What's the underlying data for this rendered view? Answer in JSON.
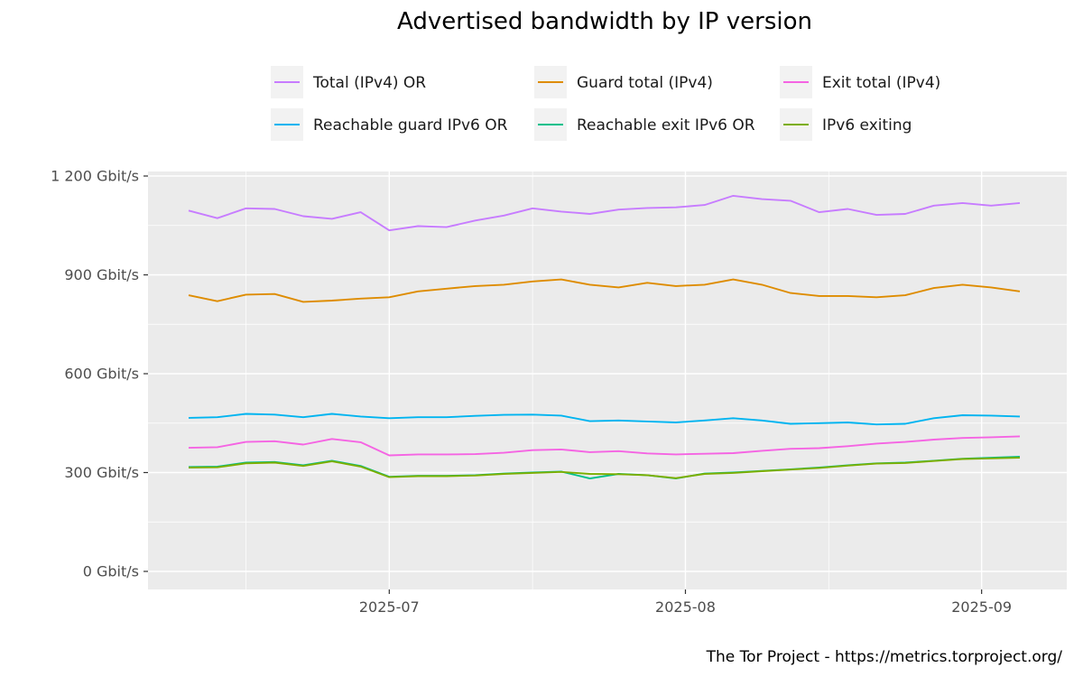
{
  "chart_data": {
    "type": "line",
    "title": "Advertised bandwidth by IP version",
    "xlabel": "",
    "ylabel": "",
    "caption": "The Tor Project - https://metrics.torproject.org/",
    "x_ticks": [
      "2025-07",
      "2025-08",
      "2025-09"
    ],
    "y_ticks": [
      "0 Gbit/s",
      "300 Gbit/s",
      "600 Gbit/s",
      "900 Gbit/s",
      "1 200 Gbit/s"
    ],
    "x_start": "2025-06-10",
    "x_end": "2025-09-05",
    "ylim": [
      0,
      1200
    ],
    "grid": true,
    "legend_position": "top",
    "x": [
      "2025-06-10",
      "2025-06-13",
      "2025-06-16",
      "2025-06-19",
      "2025-06-22",
      "2025-06-25",
      "2025-06-28",
      "2025-07-01",
      "2025-07-04",
      "2025-07-07",
      "2025-07-10",
      "2025-07-13",
      "2025-07-16",
      "2025-07-19",
      "2025-07-22",
      "2025-07-25",
      "2025-07-28",
      "2025-07-31",
      "2025-08-03",
      "2025-08-06",
      "2025-08-09",
      "2025-08-12",
      "2025-08-15",
      "2025-08-18",
      "2025-08-21",
      "2025-08-24",
      "2025-08-27",
      "2025-08-30",
      "2025-09-02",
      "2025-09-05"
    ],
    "series": [
      {
        "name": "Total (IPv4) OR",
        "color": "#c77cff",
        "values": [
          1095,
          1072,
          1102,
          1100,
          1078,
          1070,
          1090,
          1035,
          1048,
          1045,
          1065,
          1080,
          1102,
          1092,
          1085,
          1098,
          1103,
          1105,
          1112,
          1140,
          1130,
          1125,
          1090,
          1100,
          1082,
          1085,
          1110,
          1118,
          1110,
          1118
        ]
      },
      {
        "name": "Guard total (IPv4)",
        "color": "#de8c00",
        "values": [
          838,
          820,
          840,
          842,
          818,
          822,
          828,
          832,
          850,
          858,
          866,
          870,
          880,
          886,
          870,
          862,
          876,
          866,
          870,
          886,
          870,
          845,
          836,
          836,
          832,
          838,
          860,
          870,
          862,
          850
        ]
      },
      {
        "name": "Exit total (IPv4)",
        "color": "#f564e3",
        "values": [
          375,
          377,
          393,
          395,
          385,
          402,
          392,
          352,
          355,
          355,
          356,
          360,
          368,
          370,
          362,
          365,
          358,
          355,
          357,
          359,
          366,
          372,
          374,
          380,
          388,
          393,
          400,
          405,
          407,
          410
        ]
      },
      {
        "name": "Reachable guard IPv6 OR",
        "color": "#00b4f0",
        "values": [
          466,
          468,
          478,
          476,
          468,
          478,
          470,
          465,
          468,
          468,
          472,
          475,
          476,
          473,
          456,
          458,
          455,
          452,
          458,
          465,
          458,
          448,
          450,
          452,
          446,
          448,
          465,
          474,
          473,
          470
        ]
      },
      {
        "name": "Reachable exit IPv6 OR",
        "color": "#00c08b",
        "values": [
          317,
          318,
          330,
          332,
          322,
          336,
          320,
          287,
          290,
          290,
          292,
          297,
          300,
          303,
          282,
          296,
          292,
          282,
          297,
          300,
          305,
          310,
          315,
          322,
          328,
          330,
          336,
          342,
          345,
          348
        ]
      },
      {
        "name": "IPv6 exiting",
        "color": "#7cae00",
        "values": [
          315,
          316,
          328,
          330,
          320,
          334,
          318,
          286,
          289,
          289,
          291,
          296,
          299,
          302,
          296,
          295,
          292,
          283,
          296,
          299,
          304,
          309,
          314,
          321,
          327,
          329,
          335,
          341,
          343,
          345
        ]
      }
    ]
  }
}
